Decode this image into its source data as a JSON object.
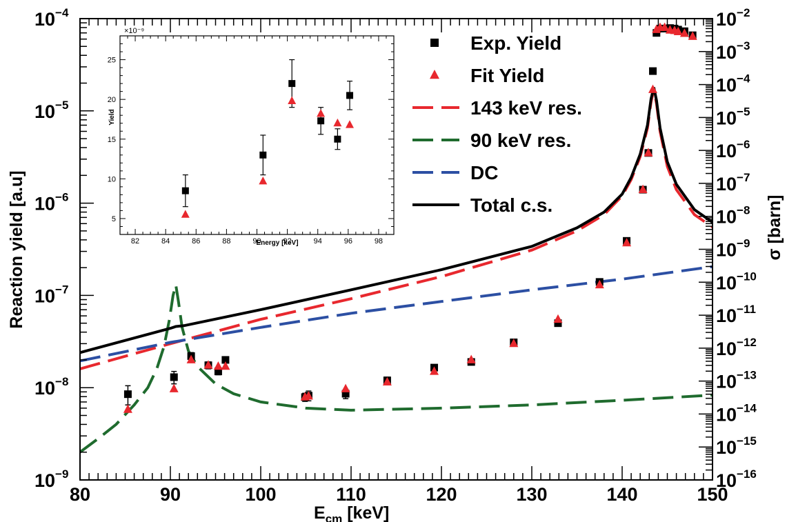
{
  "chart_data": [
    {
      "type": "scatter",
      "xlabel": "E_cm [keV]",
      "ylabel": "Reaction yield [a.u]",
      "y2label": "σ [barn]",
      "xlim": [
        80,
        150
      ],
      "ylim": [
        1e-09,
        0.0001
      ],
      "y2lim": [
        1e-16,
        0.01
      ],
      "yscale": "log",
      "y2scale": "log",
      "x_ticks": [
        "80",
        "90",
        "100",
        "110",
        "120",
        "130",
        "140",
        "150"
      ],
      "y_ticks": [
        {
          "base": "10",
          "exp": "−9"
        },
        {
          "base": "10",
          "exp": "−8"
        },
        {
          "base": "10",
          "exp": "−7"
        },
        {
          "base": "10",
          "exp": "−6"
        },
        {
          "base": "10",
          "exp": "−5"
        },
        {
          "base": "10",
          "exp": "−4"
        }
      ],
      "y2_ticks": [
        {
          "base": "10",
          "exp": "−16"
        },
        {
          "base": "10",
          "exp": "−15"
        },
        {
          "base": "10",
          "exp": "−14"
        },
        {
          "base": "10",
          "exp": "−13"
        },
        {
          "base": "10",
          "exp": "−12"
        },
        {
          "base": "10",
          "exp": "−11"
        },
        {
          "base": "10",
          "exp": "−10"
        },
        {
          "base": "10",
          "exp": "−9"
        },
        {
          "base": "10",
          "exp": "−8"
        },
        {
          "base": "10",
          "exp": "−7"
        },
        {
          "base": "10",
          "exp": "−6"
        },
        {
          "base": "10",
          "exp": "−5"
        },
        {
          "base": "10",
          "exp": "−4"
        },
        {
          "base": "10",
          "exp": "−3"
        },
        {
          "base": "10",
          "exp": "−2"
        }
      ],
      "legend": {
        "placement": "top-right",
        "entries": [
          {
            "label": "Exp. Yield",
            "marker": "square",
            "color": "#000000"
          },
          {
            "label": "Fit Yield",
            "marker": "triangle",
            "color": "#e8282e"
          },
          {
            "label": "143 keV res.",
            "line": "dashed",
            "color": "#e8282e"
          },
          {
            "label": "90 keV res.",
            "line": "dashed",
            "color": "#1f6b2e"
          },
          {
            "label": "DC",
            "line": "dashed",
            "color": "#2c4fa3"
          },
          {
            "label": "Total c.s.",
            "line": "solid",
            "color": "#000000"
          }
        ]
      },
      "series": [
        {
          "name": "Exp. Yield",
          "marker": "square",
          "color": "#000000",
          "x": [
            85.3,
            90.4,
            92.3,
            94.2,
            95.3,
            96.1,
            104.9,
            105.3,
            109.4,
            114.0,
            119.2,
            123.3,
            128.0,
            132.9,
            137.5,
            140.5,
            142.3,
            142.9,
            143.4,
            143.8,
            144.2,
            144.7,
            145.3,
            145.8,
            146.2,
            146.9,
            147.8
          ],
          "y": [
            8.5e-09,
            1.3e-08,
            2.2e-08,
            1.75e-08,
            1.5e-08,
            2e-08,
            7.9e-09,
            8.2e-09,
            8.6e-09,
            1.2e-08,
            1.65e-08,
            1.9e-08,
            3.1e-08,
            5e-08,
            1.4e-07,
            3.9e-07,
            1.4e-06,
            3.5e-06,
            2.7e-05,
            7e-05,
            7.8e-05,
            7.8e-05,
            7.9e-05,
            7.8e-05,
            7.6e-05,
            7.3e-05,
            6.6e-05
          ],
          "yerr": [
            2e-09,
            2e-09,
            2e-09,
            1.5e-09,
            1.2e-09,
            1e-09,
            8e-10,
            1e-09,
            1e-09,
            1e-09,
            1e-09,
            1e-09,
            2e-09,
            3e-09,
            0,
            0,
            0,
            0,
            0,
            0,
            0,
            0,
            0,
            0,
            0,
            0,
            0
          ]
        },
        {
          "name": "Fit Yield",
          "marker": "triangle",
          "color": "#e8282e",
          "x": [
            85.3,
            90.4,
            92.3,
            94.2,
            95.3,
            96.1,
            104.9,
            105.3,
            109.4,
            114.0,
            119.2,
            123.3,
            128.0,
            132.9,
            137.5,
            140.5,
            142.3,
            142.9,
            143.4,
            143.8,
            144.2,
            144.7,
            145.3,
            145.8,
            146.2,
            146.9,
            147.8
          ],
          "y": [
            5.8e-09,
            9.7e-09,
            2e-08,
            1.75e-08,
            1.7e-08,
            1.7e-08,
            7.9e-09,
            8.1e-09,
            9.7e-09,
            1.15e-08,
            1.5e-08,
            2e-08,
            3e-08,
            5.5e-08,
            1.3e-07,
            3.7e-07,
            1.4e-06,
            3.5e-06,
            1.7e-05,
            7.6e-05,
            8e-05,
            8e-05,
            7.5e-05,
            7.4e-05,
            7.2e-05,
            6.9e-05,
            6.4e-05
          ]
        },
        {
          "name": "143 keV res.",
          "line": "dashed",
          "color": "#e8282e",
          "x": [
            80,
            90,
            100,
            110,
            120,
            130,
            135,
            138,
            140,
            141,
            142,
            142.8,
            143.2,
            143.5,
            143.8,
            144.2,
            145,
            146,
            148,
            150
          ],
          "y": [
            1.6e-08,
            3e-08,
            5.5e-08,
            9.2e-08,
            1.6e-07,
            3.1e-07,
            5e-07,
            7.5e-07,
            1.2e-06,
            1.8e-06,
            3.2e-06,
            6.5e-06,
            1.25e-05,
            1.7e-05,
            1.2e-05,
            6e-06,
            2.5e-06,
            1.4e-06,
            7.5e-07,
            5.5e-07
          ]
        },
        {
          "name": "90 keV res.",
          "line": "dashed",
          "color": "#1f6b2e",
          "x": [
            80,
            82,
            84,
            86,
            87.5,
            88.5,
            89.3,
            89.9,
            90.3,
            90.6,
            90.9,
            91.3,
            92,
            93,
            95,
            97,
            100,
            105,
            110,
            120,
            130,
            140,
            150
          ],
          "y": [
            2e-09,
            2.8e-09,
            4e-09,
            6.5e-09,
            1e-08,
            1.6e-08,
            2.8e-08,
            5.5e-08,
            1e-07,
            1.3e-07,
            8.5e-08,
            4.5e-08,
            2.5e-08,
            1.7e-08,
            1.1e-08,
            8.6e-09,
            7e-09,
            6e-09,
            5.7e-09,
            6e-09,
            6.5e-09,
            7.3e-09,
            8.3e-09
          ]
        },
        {
          "name": "DC",
          "line": "dashed",
          "color": "#2c4fa3",
          "x": [
            80,
            90,
            100,
            110,
            120,
            130,
            140,
            150
          ],
          "y": [
            1.95e-08,
            3.1e-08,
            4.5e-08,
            6.4e-08,
            8.6e-08,
            1.15e-07,
            1.5e-07,
            2.05e-07
          ]
        },
        {
          "name": "Total c.s.",
          "line": "solid",
          "color": "#000000",
          "x": [
            80,
            90,
            90.6,
            91.5,
            100,
            110,
            120,
            130,
            135,
            138,
            140,
            141,
            142,
            142.8,
            143.2,
            143.5,
            143.8,
            144.2,
            145,
            146,
            148,
            150
          ],
          "y": [
            2.4e-08,
            4.4e-08,
            4.6e-08,
            4.7e-08,
            7e-08,
            1.15e-07,
            1.9e-07,
            3.4e-07,
            5.4e-07,
            8e-07,
            1.25e-06,
            1.9e-06,
            3.4e-06,
            7e-06,
            1.35e-05,
            1.8e-05,
            1.3e-05,
            6.5e-06,
            2.8e-06,
            1.6e-06,
            8.5e-07,
            6.2e-07
          ]
        }
      ]
    },
    {
      "type": "scatter",
      "xlabel": "Energy [keV]",
      "ylabel": "Yield",
      "multiplier": "×10⁻⁹",
      "xlim": [
        81,
        99
      ],
      "ylim": [
        3,
        28
      ],
      "x_ticks": [
        82,
        84,
        86,
        88,
        90,
        92,
        94,
        96,
        98
      ],
      "y_ticks": [
        5,
        10,
        15,
        20,
        25
      ],
      "series": [
        {
          "name": "Exp. Yield",
          "marker": "square",
          "color": "#000000",
          "x": [
            85.3,
            90.4,
            92.3,
            94.2,
            95.3,
            96.1
          ],
          "y": [
            8.5,
            13.0,
            22.0,
            17.3,
            15.0,
            20.5
          ],
          "yerr": [
            2.0,
            2.5,
            3.0,
            1.7,
            1.3,
            1.8
          ]
        },
        {
          "name": "Fit Yield",
          "marker": "triangle",
          "color": "#e8282e",
          "x": [
            85.3,
            90.4,
            92.3,
            94.2,
            95.3,
            96.1
          ],
          "y": [
            5.5,
            9.7,
            19.8,
            18.2,
            17.0,
            16.8
          ]
        }
      ]
    }
  ]
}
